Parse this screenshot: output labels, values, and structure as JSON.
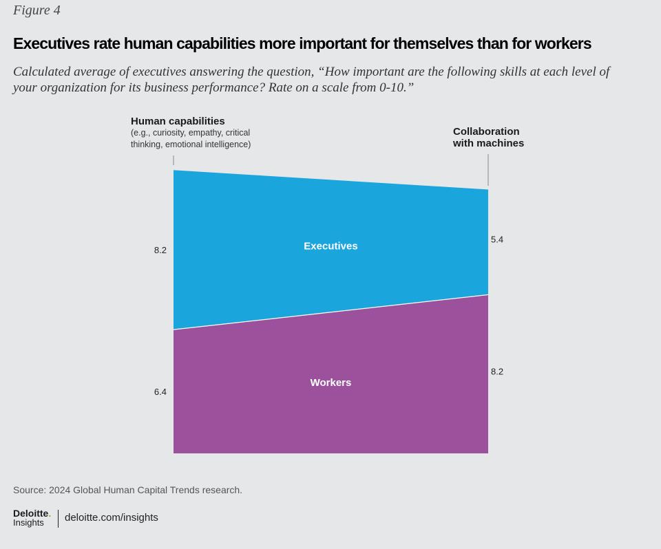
{
  "figure_label": "Figure 4",
  "chart_data": {
    "type": "area",
    "title": "Executives rate human capabilities more important for themselves than for workers",
    "subtitle": "Calculated average of executives answering the question, “How important are the following skills at each level of your organization for its business performance? Rate on a scale from 0-10.”",
    "categories": [
      {
        "label": "Human capabilities",
        "description": "(e.g., curiosity, empathy, critical thinking, emotional intelligence)"
      },
      {
        "label": "Collaboration with machines",
        "description": ""
      }
    ],
    "series": [
      {
        "name": "Workers",
        "values": [
          6.4,
          8.2
        ],
        "color": "#9b519b"
      },
      {
        "name": "Executives",
        "values": [
          8.2,
          5.4
        ],
        "color": "#1ba5dd"
      }
    ],
    "value_labels": {
      "left": [
        "8.2",
        "6.4"
      ],
      "right": [
        "5.4",
        "8.2"
      ]
    },
    "stacked": true,
    "grid": false
  },
  "source": "Source: 2024 Global Human Capital Trends research.",
  "footer": {
    "logo_line1": "Deloitte",
    "logo_dot": ".",
    "logo_line2": "Insights",
    "url": "deloitte.com/insights"
  }
}
